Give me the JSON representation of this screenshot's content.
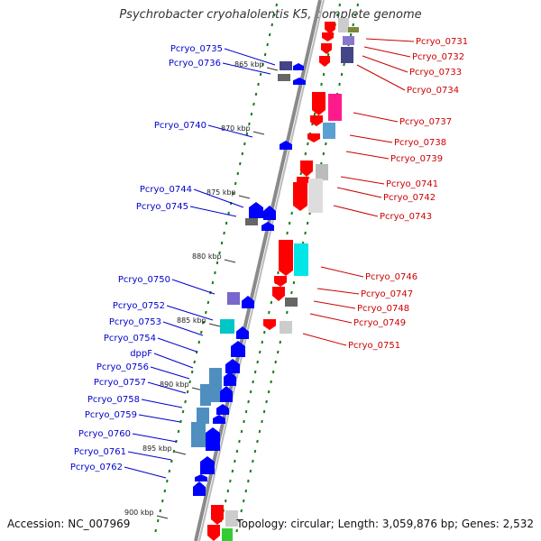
{
  "title": "Psychrobacter cryohalolentis K5, complete genome",
  "accession": "Accession: NC_007969",
  "topology": "Topology: circular; Length: 3,059,876 bp; Genes: 2,532",
  "colors": {
    "left_label": "#0000cc",
    "right_label": "#cc0000",
    "backbone": "#8a8a8a",
    "tick": "#1a7a1a"
  },
  "scale_ticks": [
    "865 kbp",
    "870 kbp",
    "875 kbp",
    "880 kbp",
    "885 kbp",
    "890 kbp",
    "895 kbp",
    "900 kbp"
  ],
  "left_genes": [
    "Pcryo_0735",
    "Pcryo_0736",
    "Pcryo_0740",
    "Pcryo_0744",
    "Pcryo_0745",
    "Pcryo_0750",
    "Pcryo_0752",
    "Pcryo_0753",
    "Pcryo_0754",
    "dppF",
    "Pcryo_0756",
    "Pcryo_0757",
    "Pcryo_0758",
    "Pcryo_0759",
    "Pcryo_0760",
    "Pcryo_0761",
    "Pcryo_0762"
  ],
  "right_genes": [
    "Pcryo_0731",
    "Pcryo_0732",
    "Pcryo_0733",
    "Pcryo_0734",
    "Pcryo_0737",
    "Pcryo_0738",
    "Pcryo_0739",
    "Pcryo_0741",
    "Pcryo_0742",
    "Pcryo_0743",
    "Pcryo_0746",
    "Pcryo_0747",
    "Pcryo_0748",
    "Pcryo_0749",
    "Pcryo_0751"
  ]
}
